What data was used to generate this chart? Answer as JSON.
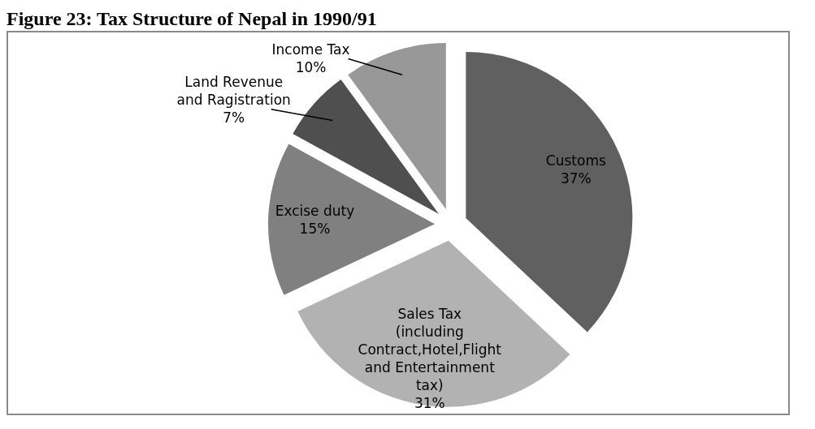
{
  "chart_data": {
    "type": "pie",
    "title": "Figure 23: Tax Structure of Nepal in 1990/91",
    "categories": [
      "Customs",
      "Sales Tax\n(including\nContract,Hotel,Flight\nand Entertainment\ntax)",
      "Excise duty",
      "Land Revenue\nand Ragistration",
      "Income Tax"
    ],
    "values": [
      37,
      31,
      15,
      7,
      10
    ],
    "colors": [
      "#606060",
      "#b2b2b2",
      "#808080",
      "#4f4f4f",
      "#989898"
    ],
    "value_labels": [
      "37%",
      "31%",
      "15%",
      "7%",
      "10%"
    ]
  }
}
